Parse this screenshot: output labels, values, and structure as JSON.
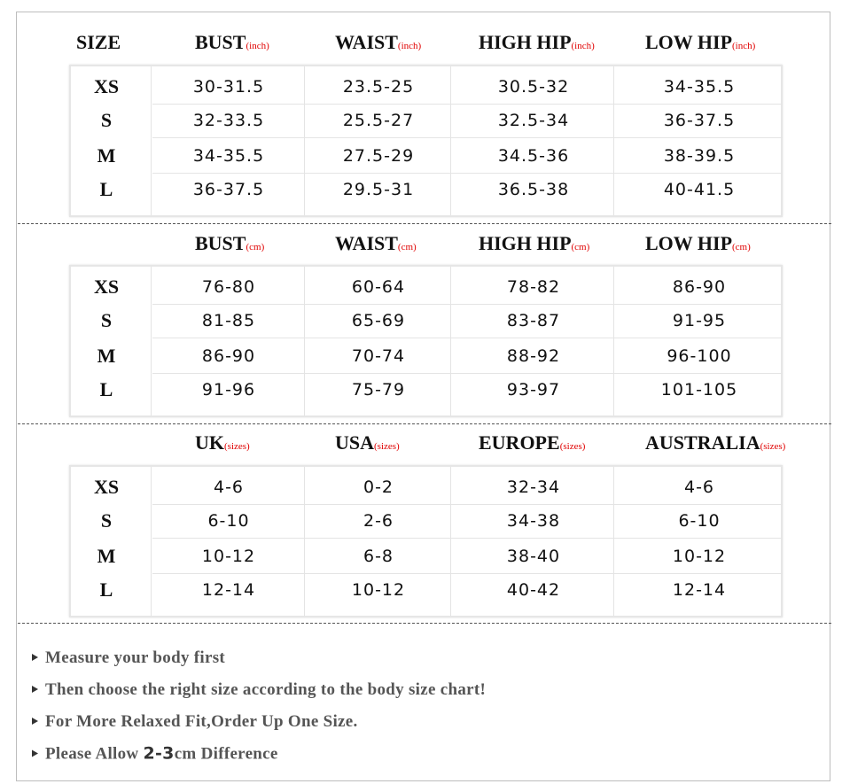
{
  "sections": [
    {
      "header": {
        "size": "SIZE",
        "columns": [
          {
            "name": "BUST",
            "unit": "(inch)"
          },
          {
            "name": "WAIST",
            "unit": "(inch)"
          },
          {
            "name": "HIGH HIP",
            "unit": "(inch)"
          },
          {
            "name": "LOW HIP",
            "unit": "(inch)"
          }
        ]
      },
      "rows": [
        {
          "size": "XS",
          "values": [
            "30-31.5",
            "23.5-25",
            "30.5-32",
            "34-35.5"
          ]
        },
        {
          "size": "S",
          "values": [
            "32-33.5",
            "25.5-27",
            "32.5-34",
            "36-37.5"
          ]
        },
        {
          "size": "M",
          "values": [
            "34-35.5",
            "27.5-29",
            "34.5-36",
            "38-39.5"
          ]
        },
        {
          "size": "L",
          "values": [
            "36-37.5",
            "29.5-31",
            "36.5-38",
            "40-41.5"
          ]
        }
      ]
    },
    {
      "header": {
        "columns": [
          {
            "name": "BUST",
            "unit": "(cm)"
          },
          {
            "name": "WAIST",
            "unit": "(cm)"
          },
          {
            "name": "HIGH HIP",
            "unit": "(cm)"
          },
          {
            "name": "LOW HIP",
            "unit": "(cm)"
          }
        ]
      },
      "rows": [
        {
          "size": "XS",
          "values": [
            "76-80",
            "60-64",
            "78-82",
            "86-90"
          ]
        },
        {
          "size": "S",
          "values": [
            "81-85",
            "65-69",
            "83-87",
            "91-95"
          ]
        },
        {
          "size": "M",
          "values": [
            "86-90",
            "70-74",
            "88-92",
            "96-100"
          ]
        },
        {
          "size": "L",
          "values": [
            "91-96",
            "75-79",
            "93-97",
            "101-105"
          ]
        }
      ]
    },
    {
      "header": {
        "columns": [
          {
            "name": "UK",
            "unit": "(sizes)"
          },
          {
            "name": "USA",
            "unit": "(sizes)"
          },
          {
            "name": "EUROPE",
            "unit": "(sizes)"
          },
          {
            "name": "AUSTRALIA",
            "unit": "(sizes)"
          }
        ]
      },
      "rows": [
        {
          "size": "XS",
          "values": [
            "4-6",
            "0-2",
            "32-34",
            "4-6"
          ]
        },
        {
          "size": "S",
          "values": [
            "6-10",
            "2-6",
            "34-38",
            "6-10"
          ]
        },
        {
          "size": "M",
          "values": [
            "10-12",
            "6-8",
            "38-40",
            "10-12"
          ]
        },
        {
          "size": "L",
          "values": [
            "12-14",
            "10-12",
            "40-42",
            "12-14"
          ]
        }
      ]
    }
  ],
  "notes": [
    {
      "text": "Measure your body first"
    },
    {
      "text": "Then choose the right size according to the body size chart!"
    },
    {
      "text": "For More Relaxed Fit,Order Up One Size."
    },
    {
      "text": "Please Allow",
      "bold": "2-3",
      "after": "cm Difference"
    }
  ]
}
